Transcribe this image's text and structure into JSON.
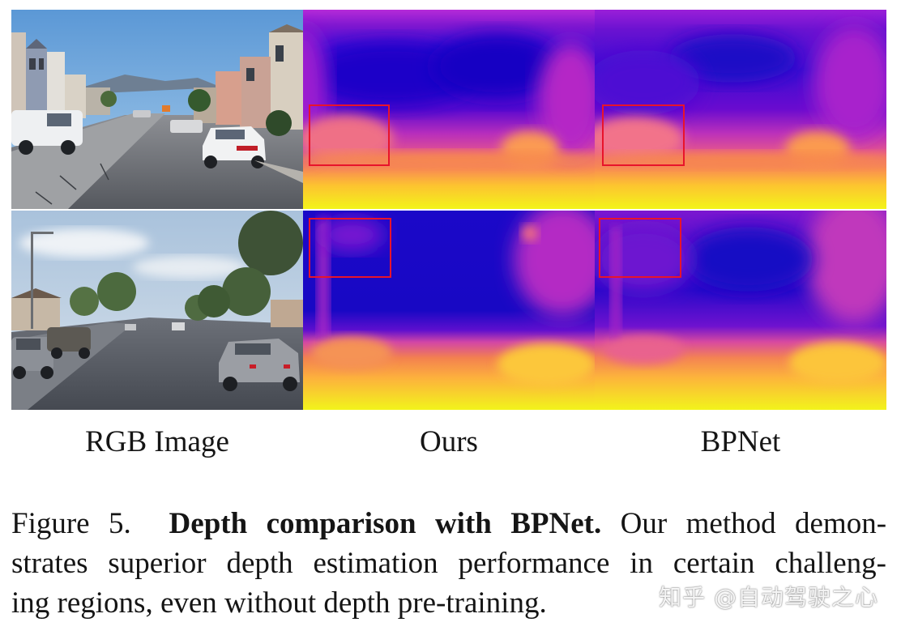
{
  "figure": {
    "column_labels": {
      "rgb": "RGB Image",
      "ours": "Ours",
      "bpnet": "BPNet"
    },
    "caption": {
      "figure_number": "Figure 5.",
      "bold_title": "Depth comparison with BPNet.",
      "line1_rest": "Our method demon-",
      "line2": "strates superior depth estimation performance in certain challeng-",
      "line3": "ing regions, even without depth pre-training."
    },
    "colormap": [
      "#0d0887",
      "#5302a3",
      "#8b0aa5",
      "#b83289",
      "#db5c68",
      "#f48849",
      "#febc2a",
      "#f0f921"
    ],
    "highlight_color": "#e8142b"
  },
  "watermark": {
    "text": "知乎 @自动驾驶之心"
  }
}
